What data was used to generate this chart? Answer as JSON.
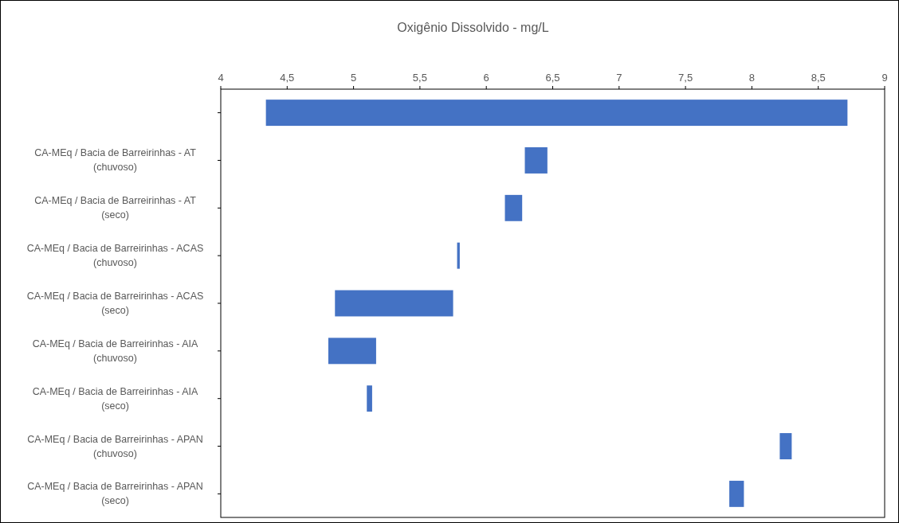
{
  "chart_data": {
    "type": "bar",
    "orientation": "horizontal",
    "title": "Oxigênio Dissolvido - mg/L",
    "categories": [
      null,
      "CA-MEq / Bacia de Barreirinhas - AT (chuvoso)",
      "CA-MEq / Bacia de Barreirinhas - AT (seco)",
      "CA-MEq / Bacia de Barreirinhas - ACAS (chuvoso)",
      "CA-MEq / Bacia de Barreirinhas - ACAS (seco)",
      "CA-MEq / Bacia de Barreirinhas - AIA (chuvoso)",
      "CA-MEq / Bacia de Barreirinhas - AIA (seco)",
      "CA-MEq / Bacia de Barreirinhas - APAN (chuvoso)",
      "CA-MEq / Bacia de Barreirinhas - APAN (seco)"
    ],
    "base": [
      4.34,
      6.29,
      6.14,
      5.78,
      4.86,
      4.81,
      5.1,
      8.21,
      7.83
    ],
    "values": [
      4.38,
      0.17,
      0.13,
      0.02,
      0.89,
      0.36,
      0.04,
      0.09,
      0.11
    ],
    "color": "#4472c4",
    "xlim": [
      4,
      9
    ],
    "xticks": [
      4,
      {
        "value": 4.5,
        "label": "4,5"
      },
      5,
      {
        "value": 5.5,
        "label": "5,5"
      },
      6,
      {
        "value": 6.5,
        "label": "6,5"
      },
      7,
      {
        "value": 7.5,
        "label": "7,5"
      },
      8,
      {
        "value": 8.5,
        "label": "8,5"
      },
      9
    ],
    "grid": false
  }
}
